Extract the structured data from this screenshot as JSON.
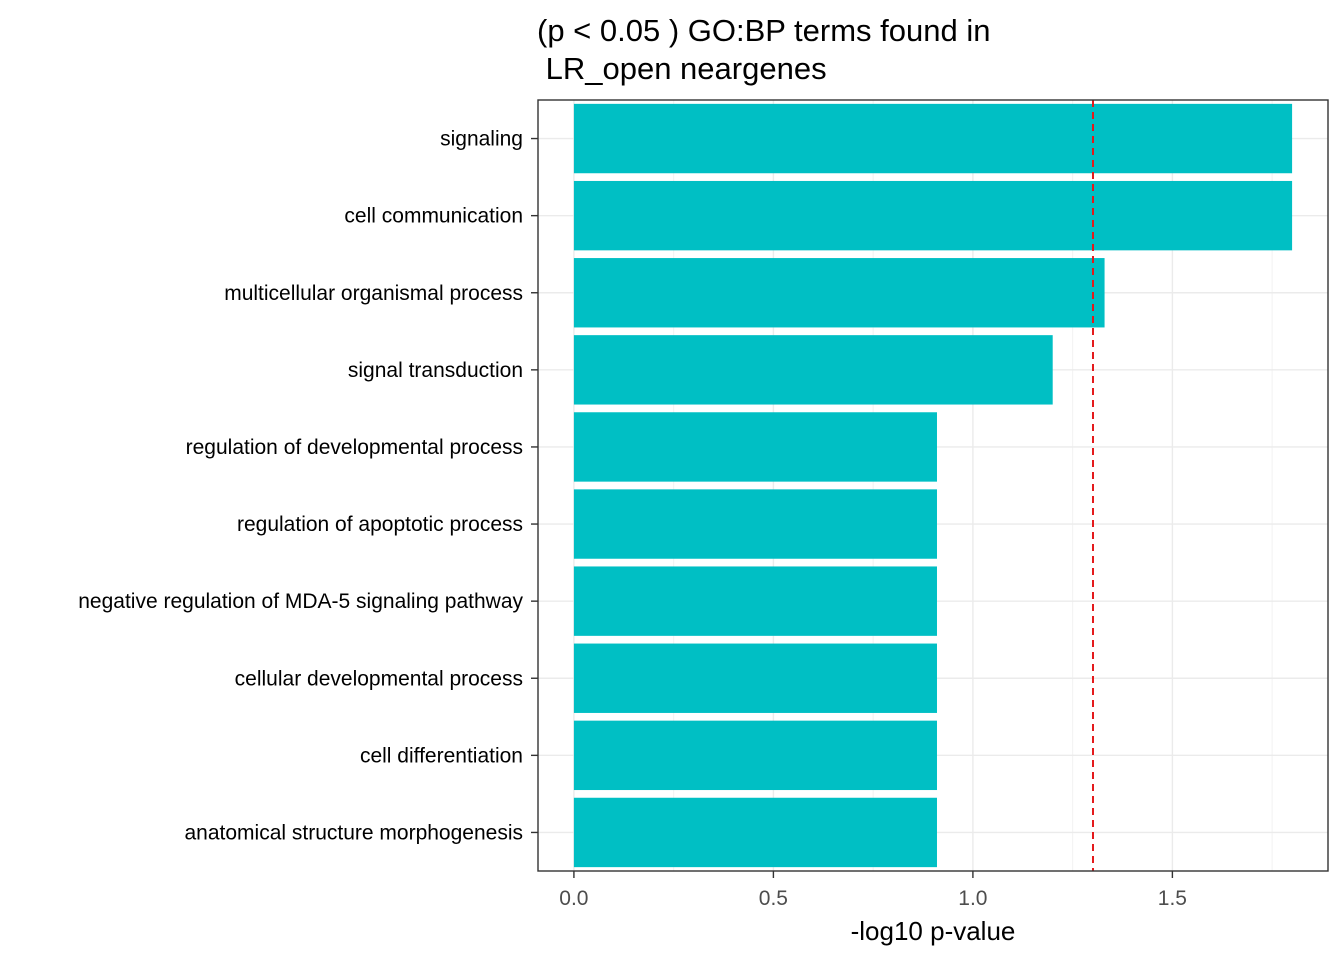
{
  "chart_data": {
    "type": "bar",
    "orientation": "horizontal",
    "title_lines": [
      "(p < 0.05 ) GO:BP terms found in",
      " LR_open neargenes"
    ],
    "xlabel": "-log10 p-value",
    "ylabel": "",
    "categories": [
      "signaling",
      "cell communication",
      "multicellular organismal process",
      "signal transduction",
      "regulation of developmental process",
      "regulation of apoptotic process",
      "negative regulation of MDA-5 signaling pathway",
      "cellular developmental process",
      "cell differentiation",
      "anatomical structure morphogenesis"
    ],
    "values": [
      1.8,
      1.8,
      1.33,
      1.2,
      0.91,
      0.91,
      0.91,
      0.91,
      0.91,
      0.91
    ],
    "xlim": [
      -0.09,
      1.89
    ],
    "xticks": [
      0.0,
      0.5,
      1.0,
      1.5
    ],
    "xtick_labels": [
      "0.0",
      "0.5",
      "1.0",
      "1.5"
    ],
    "threshold_line": 1.301,
    "bar_color": "#00BFC4",
    "threshold_color": "#E41A1C",
    "grid": true,
    "legend": "none"
  }
}
